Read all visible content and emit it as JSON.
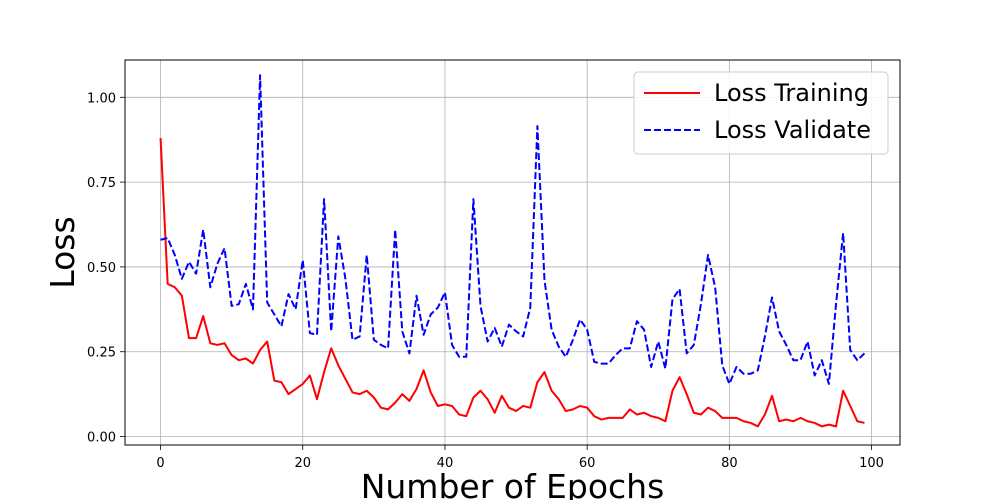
{
  "chart_data": {
    "type": "line",
    "title": "",
    "xlabel": "Number of Epochs",
    "ylabel": "Loss",
    "xlim": [
      -5,
      104
    ],
    "ylim": [
      -0.025,
      1.11
    ],
    "xticks": [
      0,
      20,
      40,
      60,
      80,
      100
    ],
    "xtick_labels": [
      "0",
      "20",
      "40",
      "60",
      "80",
      "100"
    ],
    "yticks": [
      0.0,
      0.25,
      0.5,
      0.75,
      1.0
    ],
    "ytick_labels": [
      "0.00",
      "0.25",
      "0.50",
      "0.75",
      "1.00"
    ],
    "grid": true,
    "legend": "top-right",
    "series": [
      {
        "name": "Loss Training",
        "color": "#ff0000",
        "style": "solid",
        "x": [
          0,
          1,
          2,
          3,
          4,
          5,
          6,
          7,
          8,
          9,
          10,
          11,
          12,
          13,
          14,
          15,
          16,
          17,
          18,
          19,
          20,
          21,
          22,
          23,
          24,
          25,
          26,
          27,
          28,
          29,
          30,
          31,
          32,
          33,
          34,
          35,
          36,
          37,
          38,
          39,
          40,
          41,
          42,
          43,
          44,
          45,
          46,
          47,
          48,
          49,
          50,
          51,
          52,
          53,
          54,
          55,
          56,
          57,
          58,
          59,
          60,
          61,
          62,
          63,
          64,
          65,
          66,
          67,
          68,
          69,
          70,
          71,
          72,
          73,
          74,
          75,
          76,
          77,
          78,
          79,
          80,
          81,
          82,
          83,
          84,
          85,
          86,
          87,
          88,
          89,
          90,
          91,
          92,
          93,
          94,
          95,
          96,
          97,
          98,
          99
        ],
        "values": [
          0.88,
          0.45,
          0.44,
          0.415,
          0.29,
          0.29,
          0.355,
          0.275,
          0.27,
          0.275,
          0.24,
          0.225,
          0.23,
          0.215,
          0.255,
          0.28,
          0.165,
          0.16,
          0.125,
          0.14,
          0.155,
          0.18,
          0.11,
          0.19,
          0.26,
          0.21,
          0.17,
          0.13,
          0.125,
          0.135,
          0.115,
          0.085,
          0.08,
          0.1,
          0.125,
          0.105,
          0.14,
          0.195,
          0.13,
          0.09,
          0.095,
          0.09,
          0.065,
          0.06,
          0.115,
          0.135,
          0.11,
          0.07,
          0.12,
          0.085,
          0.075,
          0.09,
          0.085,
          0.16,
          0.19,
          0.135,
          0.11,
          0.075,
          0.08,
          0.09,
          0.085,
          0.06,
          0.05,
          0.055,
          0.055,
          0.055,
          0.08,
          0.065,
          0.07,
          0.06,
          0.055,
          0.045,
          0.135,
          0.175,
          0.125,
          0.07,
          0.065,
          0.085,
          0.075,
          0.055,
          0.055,
          0.055,
          0.045,
          0.04,
          0.03,
          0.065,
          0.12,
          0.045,
          0.05,
          0.045,
          0.055,
          0.045,
          0.04,
          0.03,
          0.035,
          0.03,
          0.135,
          0.09,
          0.045,
          0.04
        ]
      },
      {
        "name": "Loss Validate",
        "color": "#0000ff",
        "style": "dashed",
        "x": [
          0,
          1,
          2,
          3,
          4,
          5,
          6,
          7,
          8,
          9,
          10,
          11,
          12,
          13,
          14,
          15,
          16,
          17,
          18,
          19,
          20,
          21,
          22,
          23,
          24,
          25,
          26,
          27,
          28,
          29,
          30,
          31,
          32,
          33,
          34,
          35,
          36,
          37,
          38,
          39,
          40,
          41,
          42,
          43,
          44,
          45,
          46,
          47,
          48,
          49,
          50,
          51,
          52,
          53,
          54,
          55,
          56,
          57,
          58,
          59,
          60,
          61,
          62,
          63,
          64,
          65,
          66,
          67,
          68,
          69,
          70,
          71,
          72,
          73,
          74,
          75,
          76,
          77,
          78,
          79,
          80,
          81,
          82,
          83,
          84,
          85,
          86,
          87,
          88,
          89,
          90,
          91,
          92,
          93,
          94,
          95,
          96,
          97,
          98,
          99
        ],
        "values": [
          0.58,
          0.585,
          0.535,
          0.465,
          0.515,
          0.48,
          0.61,
          0.44,
          0.51,
          0.555,
          0.385,
          0.39,
          0.45,
          0.375,
          1.065,
          0.395,
          0.36,
          0.325,
          0.42,
          0.375,
          0.52,
          0.305,
          0.3,
          0.7,
          0.31,
          0.59,
          0.465,
          0.285,
          0.295,
          0.535,
          0.285,
          0.27,
          0.26,
          0.61,
          0.31,
          0.245,
          0.415,
          0.3,
          0.36,
          0.38,
          0.425,
          0.27,
          0.235,
          0.235,
          0.7,
          0.385,
          0.28,
          0.32,
          0.265,
          0.33,
          0.31,
          0.295,
          0.38,
          0.915,
          0.46,
          0.315,
          0.265,
          0.235,
          0.285,
          0.345,
          0.315,
          0.22,
          0.215,
          0.215,
          0.24,
          0.26,
          0.26,
          0.34,
          0.315,
          0.205,
          0.28,
          0.2,
          0.405,
          0.435,
          0.245,
          0.27,
          0.39,
          0.535,
          0.44,
          0.21,
          0.155,
          0.205,
          0.185,
          0.185,
          0.195,
          0.295,
          0.41,
          0.31,
          0.27,
          0.225,
          0.225,
          0.28,
          0.18,
          0.225,
          0.155,
          0.39,
          0.6,
          0.255,
          0.225,
          0.245
        ]
      }
    ]
  }
}
